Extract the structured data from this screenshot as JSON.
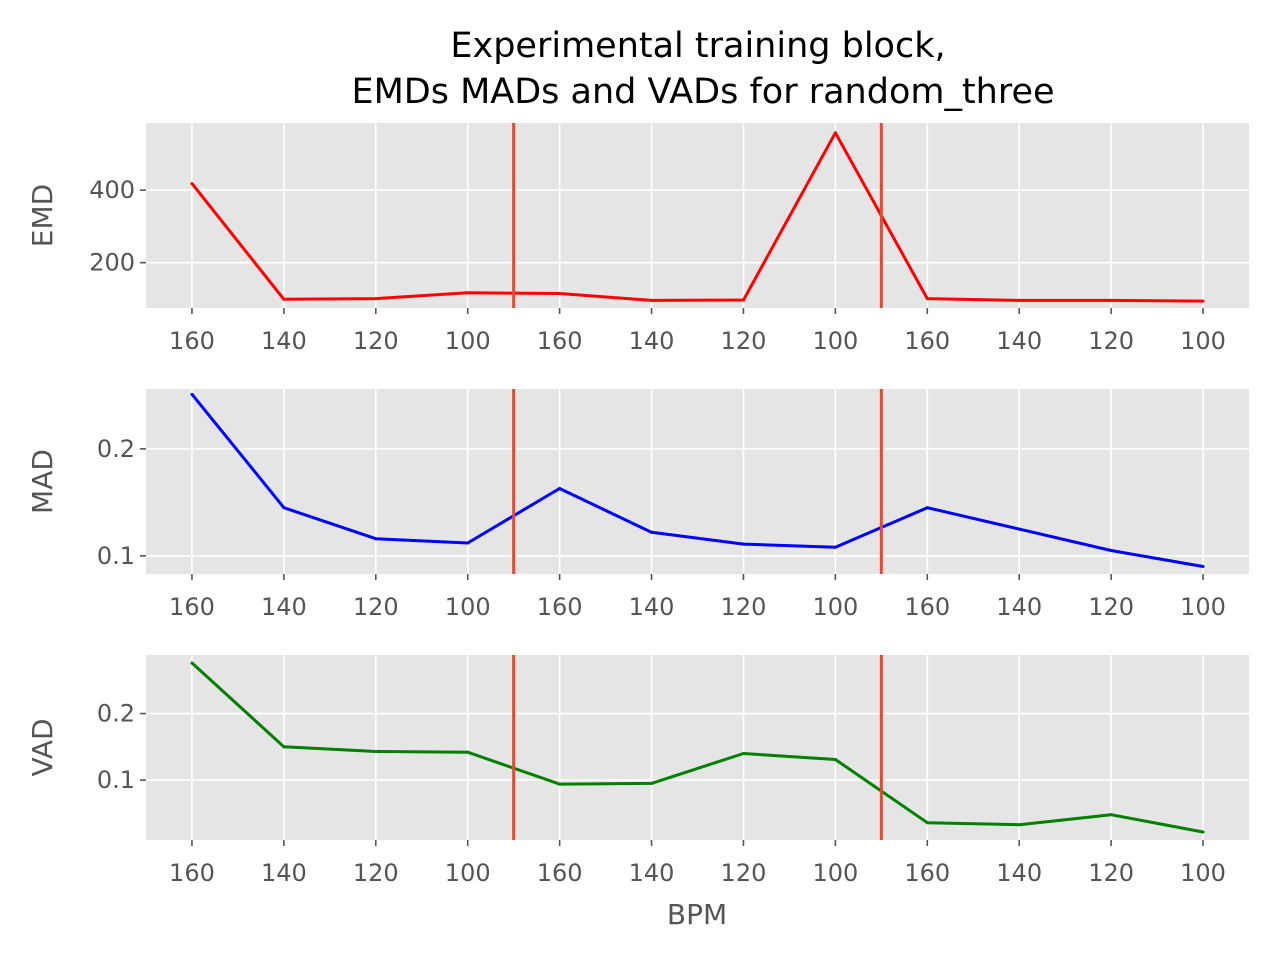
{
  "figure": {
    "title_line1": "Experimental training block,",
    "title_line2": "EMDs MADs and VADs for random_three",
    "xlabel": "BPM"
  },
  "chart_data": [
    {
      "type": "line",
      "name": "emd",
      "ylabel": "EMD",
      "color": "#ff0000",
      "x": [
        0,
        1,
        2,
        3,
        4,
        5,
        6,
        7,
        8,
        9,
        10,
        11
      ],
      "xtick_labels": [
        "160",
        "140",
        "120",
        "100",
        "160",
        "140",
        "120",
        "100",
        "160",
        "140",
        "120",
        "100"
      ],
      "xlim": [
        -0.5,
        11.5
      ],
      "values": [
        418,
        99,
        101,
        117,
        115,
        96,
        97,
        558,
        101,
        96,
        96,
        94
      ],
      "ylim": [
        75,
        585
      ],
      "yticks": [
        200,
        400
      ],
      "ytick_labels": [
        "200",
        "400"
      ],
      "vlines": [
        3.5,
        7.5
      ],
      "vline_color": "#e24a33",
      "grid": true
    },
    {
      "type": "line",
      "name": "mad",
      "ylabel": "MAD",
      "color": "#0000ff",
      "x": [
        0,
        1,
        2,
        3,
        4,
        5,
        6,
        7,
        8,
        9,
        10,
        11
      ],
      "xtick_labels": [
        "160",
        "140",
        "120",
        "100",
        "160",
        "140",
        "120",
        "100",
        "160",
        "140",
        "120",
        "100"
      ],
      "xlim": [
        -0.5,
        11.5
      ],
      "values": [
        0.251,
        0.145,
        0.116,
        0.112,
        0.163,
        0.122,
        0.111,
        0.108,
        0.145,
        0.125,
        0.105,
        0.09
      ],
      "ylim": [
        0.083,
        0.256
      ],
      "yticks": [
        0.1,
        0.2
      ],
      "ytick_labels": [
        "0.1",
        "0.2"
      ],
      "vlines": [
        3.5,
        7.5
      ],
      "vline_color": "#e24a33",
      "grid": true
    },
    {
      "type": "line",
      "name": "vad",
      "ylabel": "VAD",
      "color": "#008000",
      "x": [
        0,
        1,
        2,
        3,
        4,
        5,
        6,
        7,
        8,
        9,
        10,
        11
      ],
      "xtick_labels": [
        "160",
        "140",
        "120",
        "100",
        "160",
        "140",
        "120",
        "100",
        "160",
        "140",
        "120",
        "100"
      ],
      "xlim": [
        -0.5,
        11.5
      ],
      "values": [
        0.276,
        0.15,
        0.143,
        0.142,
        0.094,
        0.095,
        0.14,
        0.131,
        0.036,
        0.033,
        0.048,
        0.022
      ],
      "ylim": [
        0.01,
        0.288
      ],
      "yticks": [
        0.1,
        0.2
      ],
      "ytick_labels": [
        "0.1",
        "0.2"
      ],
      "vlines": [
        3.5,
        7.5
      ],
      "vline_color": "#e24a33",
      "grid": true
    }
  ]
}
